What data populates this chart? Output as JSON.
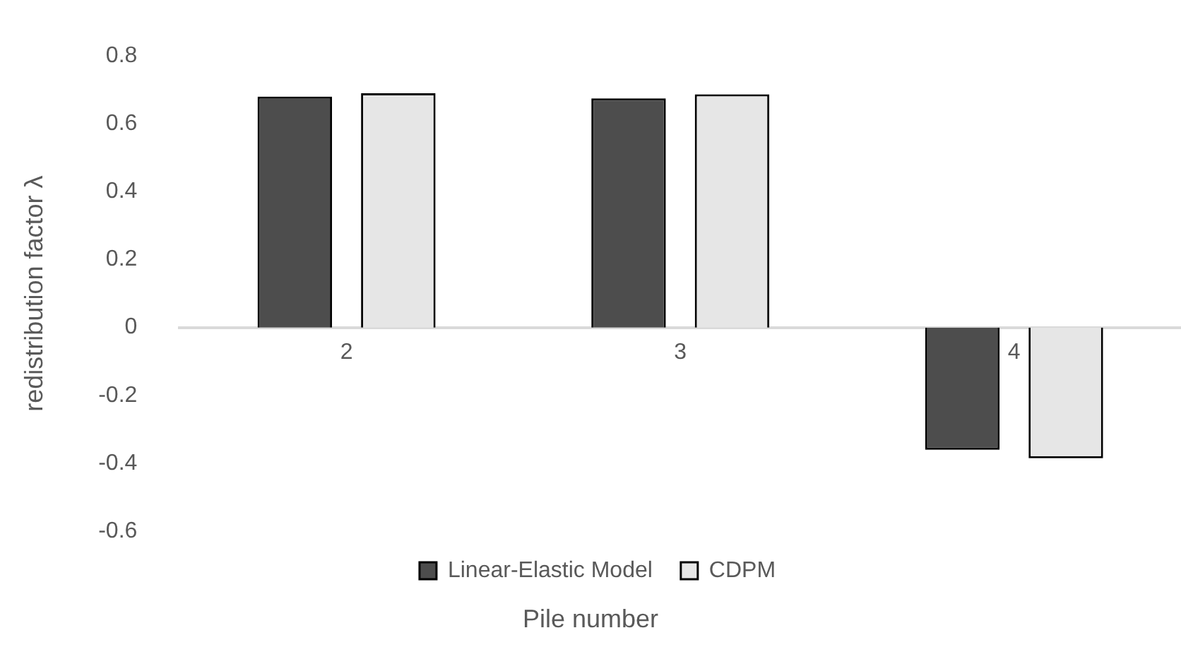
{
  "chart_data": {
    "type": "bar",
    "xlabel": "Pile number",
    "ylabel": "redistribution factor λ",
    "categories": [
      "2",
      "3",
      "4"
    ],
    "series": [
      {
        "name": "Linear-Elastic Model",
        "color": "#4d4d4d",
        "values": [
          0.68,
          0.675,
          -0.36
        ]
      },
      {
        "name": "CDPM",
        "color": "#e6e6e6",
        "values": [
          0.69,
          0.687,
          -0.385
        ]
      }
    ],
    "ylim": [
      -0.6,
      0.8
    ],
    "yticks": [
      -0.6,
      -0.4,
      -0.2,
      0,
      0.2,
      0.4,
      0.6,
      0.8
    ],
    "grid": false,
    "legend": "bottom"
  }
}
